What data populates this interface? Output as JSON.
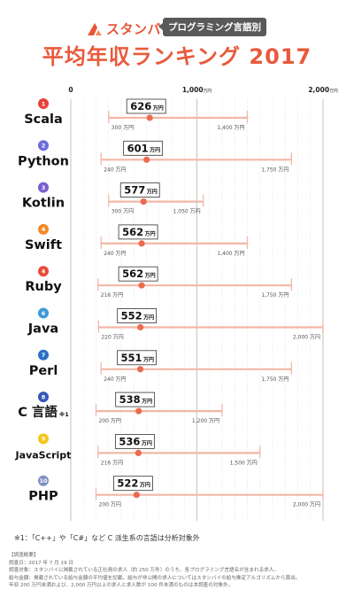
{
  "brand": {
    "name": "スタンバイ",
    "tag": "プログラミング言語別"
  },
  "title": "平均年収ランキング 2017",
  "colors": {
    "accent": "#e85a3c",
    "bar": "#f2b7a6",
    "dot": "#ec6b4f",
    "badge": "#ffffff"
  },
  "chart_data": {
    "type": "range",
    "unit": "万円",
    "xlim": [
      0,
      2000
    ],
    "ticks": [
      {
        "value": 0,
        "label": "0",
        "unit": ""
      },
      {
        "value": 1000,
        "label": "1,000",
        "unit": "万円"
      },
      {
        "value": 2000,
        "label": "2,000",
        "unit": "万円"
      }
    ],
    "grid": true,
    "rows": [
      {
        "rank": "1",
        "language": "Scala",
        "average": 626,
        "min": 300,
        "max": 1400,
        "avg_label": "626",
        "min_label": "300 万円",
        "max_label": "1,400 万円",
        "rank_color": "#e8423a"
      },
      {
        "rank": "2",
        "language": "Python",
        "average": 601,
        "min": 240,
        "max": 1750,
        "avg_label": "601",
        "min_label": "240 万円",
        "max_label": "1,750 万円",
        "rank_color": "#6a6ed9"
      },
      {
        "rank": "3",
        "language": "Kotlin",
        "average": 577,
        "min": 300,
        "max": 1050,
        "avg_label": "577",
        "min_label": "300 万円",
        "max_label": "1,050 万円",
        "rank_color": "#7a5fd0"
      },
      {
        "rank": "4",
        "language": "Swift",
        "average": 562,
        "min": 240,
        "max": 1400,
        "avg_label": "562",
        "min_label": "240 万円",
        "max_label": "1,400 万円",
        "rank_color": "#f08a2a"
      },
      {
        "rank": "4",
        "language": "Ruby",
        "average": 562,
        "min": 216,
        "max": 1750,
        "avg_label": "562",
        "min_label": "216 万円",
        "max_label": "1,750 万円",
        "rank_color": "#e84b3a"
      },
      {
        "rank": "6",
        "language": "Java",
        "average": 552,
        "min": 220,
        "max": 2000,
        "avg_label": "552",
        "min_label": "220 万円",
        "max_label": "2,000 万円",
        "rank_color": "#3f9ad6"
      },
      {
        "rank": "7",
        "language": "Perl",
        "average": 551,
        "min": 240,
        "max": 1750,
        "avg_label": "551",
        "min_label": "240 万円",
        "max_label": "1,750 万円",
        "rank_color": "#2d6fc4"
      },
      {
        "rank": "8",
        "language": "C 言語",
        "footnote_mark": "※1",
        "average": 538,
        "min": 200,
        "max": 1200,
        "avg_label": "538",
        "min_label": "200 万円",
        "max_label": "1,200 万円",
        "rank_color": "#3357b8"
      },
      {
        "rank": "9",
        "language": "JavaScript",
        "average": 536,
        "min": 216,
        "max": 1500,
        "avg_label": "536",
        "min_label": "216 万円",
        "max_label": "1,500 万円",
        "rank_color": "#f5c518"
      },
      {
        "rank": "10",
        "language": "PHP",
        "average": 522,
        "min": 200,
        "max": 2000,
        "avg_label": "522",
        "min_label": "200 万円",
        "max_label": "2,000 万円",
        "rank_color": "#7f8fc4"
      }
    ]
  },
  "footnote": "※1：「C++」や「C#」など C 派生系の言語は分析対象外",
  "notes": [
    "【調査概要】",
    "調査日：2017 年 7 月 19 日",
    "調査対象：スタンバイに掲載されている正社員の求人（約 250 万件）のうち、各プログラミング言語名が含まれる求人。",
    "給与金額：掲載されている給与金額の平均値を記載。給与が非公開の求人についてはスタンバイの給与推定アルゴリズムから算出。",
    "年収 200 万円未満および、2,000 万円以上の求人と求人数が 100 件未満のものは本調査の対象外。"
  ]
}
